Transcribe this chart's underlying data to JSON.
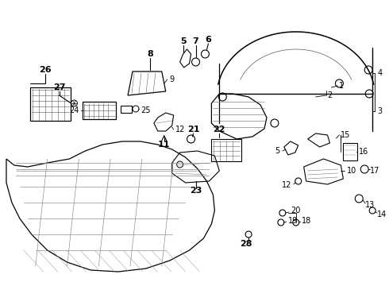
{
  "background_color": "#ffffff",
  "line_color": "#000000",
  "figsize": [
    4.9,
    3.6
  ],
  "dpi": 100
}
